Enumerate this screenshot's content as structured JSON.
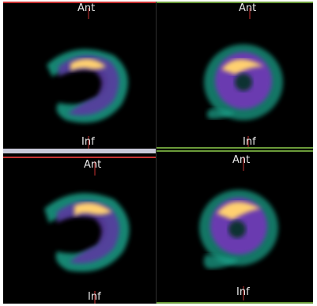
{
  "viewports": [
    {
      "id": "top-left",
      "top_label": "Ant",
      "bottom_label": "Inf",
      "accent": "#c83232"
    },
    {
      "id": "top-right",
      "top_label": "Ant",
      "bottom_label": "Inf",
      "accent": "#6a9a3a"
    },
    {
      "id": "bottom-left",
      "top_label": "Ant",
      "bottom_label": "Inf",
      "accent": "#c83232"
    },
    {
      "id": "bottom-right",
      "top_label": "Ant",
      "bottom_label": "Inf",
      "accent": "#6a9a3a"
    }
  ],
  "colors": {
    "background": "#000000",
    "separator": "#c8c8d8",
    "cursor_cross": "#c83232"
  }
}
